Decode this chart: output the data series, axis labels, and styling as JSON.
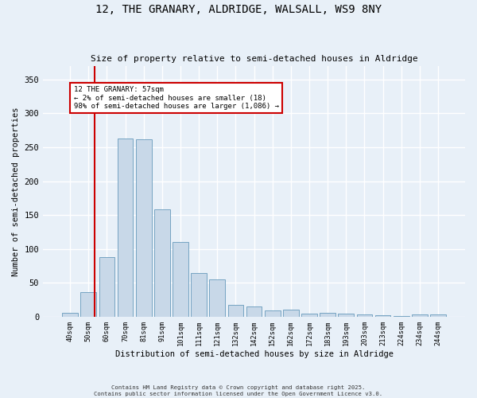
{
  "title_line1": "12, THE GRANARY, ALDRIDGE, WALSALL, WS9 8NY",
  "title_line2": "Size of property relative to semi-detached houses in Aldridge",
  "xlabel": "Distribution of semi-detached houses by size in Aldridge",
  "ylabel": "Number of semi-detached properties",
  "categories": [
    "40sqm",
    "50sqm",
    "60sqm",
    "70sqm",
    "81sqm",
    "91sqm",
    "101sqm",
    "111sqm",
    "121sqm",
    "132sqm",
    "142sqm",
    "152sqm",
    "162sqm",
    "172sqm",
    "183sqm",
    "193sqm",
    "203sqm",
    "213sqm",
    "224sqm",
    "234sqm",
    "244sqm"
  ],
  "values": [
    6,
    37,
    88,
    263,
    262,
    158,
    110,
    65,
    55,
    18,
    15,
    10,
    11,
    5,
    6,
    5,
    4,
    2,
    1,
    4,
    4
  ],
  "bar_color": "#c8d8e8",
  "bar_edge_color": "#6699bb",
  "highlight_bar_index": 1,
  "highlight_line_color": "#cc0000",
  "annotation_text": "12 THE GRANARY: 57sqm\n← 2% of semi-detached houses are smaller (18)\n98% of semi-detached houses are larger (1,086) →",
  "annotation_box_color": "#cc0000",
  "ylim": [
    0,
    370
  ],
  "yticks": [
    0,
    50,
    100,
    150,
    200,
    250,
    300,
    350
  ],
  "background_color": "#dce8f5",
  "plot_bg_color": "#e8f0f8",
  "grid_color": "#ffffff",
  "fig_bg_color": "#e8f0f8",
  "footer_line1": "Contains HM Land Registry data © Crown copyright and database right 2025.",
  "footer_line2": "Contains public sector information licensed under the Open Government Licence v3.0."
}
